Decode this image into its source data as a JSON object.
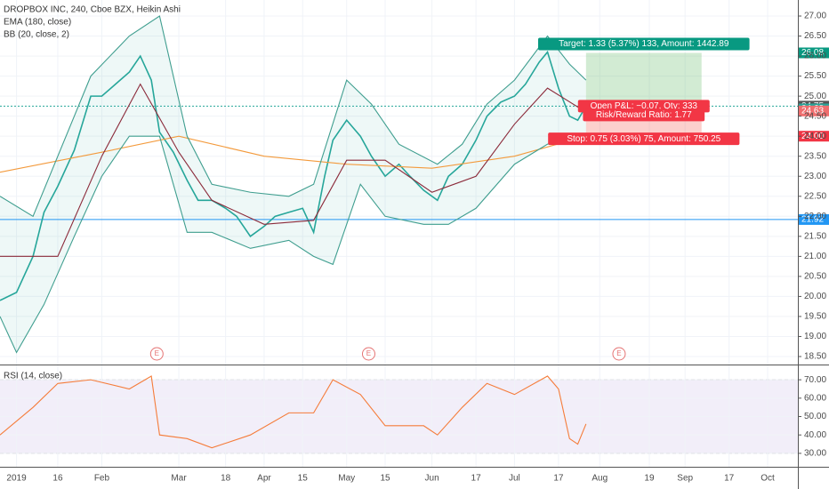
{
  "chart_data": [
    {
      "type": "line",
      "title": "DROPBOX INC, 240, Cboe BZX, Heikin Ashi",
      "xlim": [
        "2018-12-26",
        "2019-10-12"
      ],
      "ylim": [
        18.3,
        27.4
      ],
      "yticks": [
        {
          "value": 18.5,
          "label": "18.50"
        },
        {
          "value": 19,
          "label": "19.00"
        },
        {
          "value": 19.5,
          "label": "19.50"
        },
        {
          "value": 20,
          "label": "20.00"
        },
        {
          "value": 20.5,
          "label": "20.50"
        },
        {
          "value": 21,
          "label": "21.00"
        },
        {
          "value": 21.5,
          "label": "21.50"
        },
        {
          "value": 22,
          "label": "22.00"
        },
        {
          "value": 22.5,
          "label": "22.50"
        },
        {
          "value": 23,
          "label": "23.00"
        },
        {
          "value": 23.5,
          "label": "23.50"
        },
        {
          "value": 24,
          "label": "24.00"
        },
        {
          "value": 24.5,
          "label": "24.50"
        },
        {
          "value": 25,
          "label": "25.00"
        },
        {
          "value": 25.5,
          "label": "25.50"
        },
        {
          "value": 26,
          "label": "26.00"
        },
        {
          "value": 26.5,
          "label": "26.50"
        },
        {
          "value": 27,
          "label": "27.00"
        }
      ],
      "series": [
        {
          "color": "#26a69a",
          "x": [
            "2018-12-26",
            "2019-01-01",
            "2019-01-07",
            "2019-01-11",
            "2019-01-16",
            "2019-01-22",
            "2019-01-28",
            "2019-02-01",
            "2019-02-06",
            "2019-02-11",
            "2019-02-15",
            "2019-02-19",
            "2019-02-22",
            "2019-02-27",
            "2019-03-04",
            "2019-03-08",
            "2019-03-13",
            "2019-03-18",
            "2019-03-22",
            "2019-03-27",
            "2019-04-01",
            "2019-04-05",
            "2019-04-10",
            "2019-04-15",
            "2019-04-19",
            "2019-04-23",
            "2019-04-26",
            "2019-05-01",
            "2019-05-06",
            "2019-05-10",
            "2019-05-15",
            "2019-05-20",
            "2019-05-24",
            "2019-05-29",
            "2019-06-03",
            "2019-06-07",
            "2019-06-12",
            "2019-06-17",
            "2019-06-21",
            "2019-06-26",
            "2019-07-01",
            "2019-07-05",
            "2019-07-10",
            "2019-07-13",
            "2019-07-17",
            "2019-07-21",
            "2019-07-24",
            "2019-07-27"
          ],
          "values": [
            19.9,
            20.1,
            21.0,
            22.1,
            22.75,
            23.65,
            25.0,
            25.0,
            25.3,
            25.6,
            26.0,
            25.4,
            24.1,
            23.6,
            22.9,
            22.4,
            22.4,
            22.2,
            22.0,
            21.5,
            21.75,
            22.0,
            22.1,
            22.2,
            21.6,
            23.0,
            23.9,
            24.4,
            24.0,
            23.5,
            23.0,
            23.3,
            23.0,
            22.65,
            22.4,
            23.0,
            23.3,
            23.9,
            24.5,
            24.85,
            25.0,
            25.3,
            25.85,
            26.1,
            25.2,
            24.5,
            24.4,
            24.75
          ]
        },
        {
          "name": "EMA (180, close)",
          "color": "#f39a3c",
          "x": [
            "2018-12-26",
            "2019-02-01",
            "2019-03-01",
            "2019-04-01",
            "2019-05-01",
            "2019-06-01",
            "2019-07-01",
            "2019-07-27"
          ],
          "values": [
            23.1,
            23.6,
            24.0,
            23.5,
            23.3,
            23.2,
            23.5,
            24.0
          ]
        },
        {
          "color": "#3f9e8f",
          "x": [
            "2018-12-26",
            "2019-01-07",
            "2019-01-16",
            "2019-01-28",
            "2019-02-11",
            "2019-02-22",
            "2019-03-04",
            "2019-03-13",
            "2019-03-27",
            "2019-04-10",
            "2019-04-19",
            "2019-05-01",
            "2019-05-10",
            "2019-05-20",
            "2019-06-03",
            "2019-06-12",
            "2019-06-21",
            "2019-07-01",
            "2019-07-13",
            "2019-07-21",
            "2019-07-27"
          ],
          "values": [
            22.5,
            22.0,
            23.5,
            25.5,
            26.5,
            27.0,
            24.0,
            22.8,
            22.6,
            22.5,
            22.8,
            25.4,
            24.8,
            23.8,
            23.3,
            23.8,
            24.8,
            25.4,
            26.5,
            25.8,
            25.4
          ]
        },
        {
          "name": "BB (20, close, 2)",
          "color": "#8b2a3a",
          "x": [
            "2018-12-26",
            "2019-01-16",
            "2019-02-01",
            "2019-02-15",
            "2019-03-01",
            "2019-03-13",
            "2019-04-01",
            "2019-04-19",
            "2019-05-01",
            "2019-05-15",
            "2019-06-01",
            "2019-06-17",
            "2019-07-01",
            "2019-07-13",
            "2019-07-27"
          ],
          "values": [
            21.0,
            21.0,
            23.5,
            25.3,
            23.6,
            22.4,
            21.8,
            21.9,
            23.4,
            23.4,
            22.6,
            23.0,
            24.3,
            25.2,
            24.6
          ]
        },
        {
          "color": "#3f9e8f",
          "x": [
            "2018-12-26",
            "2019-01-01",
            "2019-01-11",
            "2019-01-22",
            "2019-02-01",
            "2019-02-11",
            "2019-02-22",
            "2019-03-04",
            "2019-03-13",
            "2019-03-27",
            "2019-04-10",
            "2019-04-19",
            "2019-04-26",
            "2019-05-06",
            "2019-05-15",
            "2019-05-29",
            "2019-06-07",
            "2019-06-17",
            "2019-07-01",
            "2019-07-13",
            "2019-07-21",
            "2019-07-27"
          ],
          "values": [
            19.5,
            18.6,
            19.8,
            21.5,
            23.0,
            24.0,
            24.0,
            21.6,
            21.6,
            21.2,
            21.4,
            21.0,
            20.8,
            22.8,
            22.0,
            21.8,
            21.8,
            22.2,
            23.3,
            23.8,
            23.9,
            23.9
          ]
        }
      ],
      "hlines": [
        {
          "value": 24.75,
          "color": "#26a69a"
        },
        {
          "value": 21.92,
          "color": "#2196f3"
        }
      ],
      "price_labels": [
        {
          "value": 26.08,
          "label": "26.08",
          "color": "#089981"
        },
        {
          "value": 24.75,
          "label": "24.75",
          "color": "#555555"
        },
        {
          "value": 24.68,
          "label": "24.68",
          "color": "#26a69a"
        },
        {
          "value": 24.63,
          "label": "24.63",
          "color": "#ef6e6e"
        },
        {
          "value": 24.0,
          "label": "24.00",
          "color": "#f23645"
        },
        {
          "value": 21.92,
          "label": "21.92",
          "color": "#2196f3"
        }
      ],
      "position": {
        "start": "2019-07-27",
        "end": "2019-09-07",
        "entry": 24.75,
        "target": 26.08,
        "stop": 24.0,
        "target_label": "Target: 1.33 (5.37%) 133, Amount: 1442.89",
        "pnl_label": "Open P&L: −0.07, Qty: 333",
        "rr_label": "Risk/Reward Ratio: 1.77",
        "stop_label": "Stop: 0.75 (3.03%) 75, Amount: 750.25"
      },
      "events": [
        {
          "date": "2019-02-21",
          "label": "E"
        },
        {
          "date": "2019-05-09",
          "label": "E"
        },
        {
          "date": "2019-08-08",
          "label": "E"
        }
      ]
    },
    {
      "type": "line",
      "title": "RSI (14, close)",
      "xlim": [
        "2018-12-26",
        "2019-10-12"
      ],
      "ylim": [
        22.7,
        77.8
      ],
      "yticks": [
        {
          "value": 30,
          "label": "30.00"
        },
        {
          "value": 40,
          "label": "40.00"
        },
        {
          "value": 50,
          "label": "50.00"
        },
        {
          "value": 60,
          "label": "60.00"
        },
        {
          "value": 70,
          "label": "70.00"
        }
      ],
      "xticks": [
        {
          "value": "2019-01-01",
          "label": "2019"
        },
        {
          "value": "2019-01-16",
          "label": "16"
        },
        {
          "value": "2019-02-01",
          "label": "Feb"
        },
        {
          "value": "2019-03-01",
          "label": "Mar"
        },
        {
          "value": "2019-03-18",
          "label": "18"
        },
        {
          "value": "2019-04-01",
          "label": "Apr"
        },
        {
          "value": "2019-04-15",
          "label": "15"
        },
        {
          "value": "2019-05-01",
          "label": "May"
        },
        {
          "value": "2019-05-15",
          "label": "15"
        },
        {
          "value": "2019-06-01",
          "label": "Jun"
        },
        {
          "value": "2019-06-17",
          "label": "17"
        },
        {
          "value": "2019-07-01",
          "label": "Jul"
        },
        {
          "value": "2019-07-17",
          "label": "17"
        },
        {
          "value": "2019-08-01",
          "label": "Aug"
        },
        {
          "value": "2019-08-19",
          "label": "19"
        },
        {
          "value": "2019-09-01",
          "label": "Sep"
        },
        {
          "value": "2019-09-17",
          "label": "17"
        },
        {
          "value": "2019-10-01",
          "label": "Oct"
        }
      ],
      "series": [
        {
          "color": "#f57c3a",
          "x": [
            "2018-12-26",
            "2019-01-07",
            "2019-01-16",
            "2019-01-28",
            "2019-02-11",
            "2019-02-19",
            "2019-02-22",
            "2019-03-04",
            "2019-03-13",
            "2019-03-27",
            "2019-04-10",
            "2019-04-19",
            "2019-04-26",
            "2019-05-06",
            "2019-05-15",
            "2019-05-29",
            "2019-06-03",
            "2019-06-12",
            "2019-06-21",
            "2019-07-01",
            "2019-07-13",
            "2019-07-17",
            "2019-07-21",
            "2019-07-24",
            "2019-07-27"
          ],
          "values": [
            40,
            55,
            68,
            70,
            65,
            72,
            40,
            38,
            33,
            40,
            52,
            52,
            70,
            62,
            45,
            45,
            40,
            55,
            68,
            62,
            72,
            65,
            38,
            35,
            46
          ]
        }
      ],
      "band_color": "#7e57c2"
    }
  ]
}
